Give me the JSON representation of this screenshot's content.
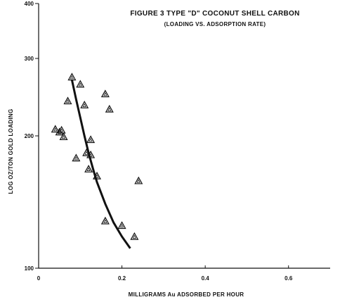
{
  "chart_data": {
    "type": "scatter",
    "title": "FIGURE 3 TYPE \"D\" COCONUT SHELL CARBON",
    "subtitle": "(LOADING VS. ADSORPTION RATE)",
    "xlabel": "MILLIGRAMS Au ADSORBED PER HOUR",
    "ylabel": "LOG OZ/TON GOLD LOADING",
    "xlim": [
      0.0,
      0.7
    ],
    "ylim": [
      100,
      400
    ],
    "y_scale": "log",
    "x_ticks": [
      "0",
      "0.2",
      "0.4",
      "0.6"
    ],
    "y_ticks": [
      "100",
      "200",
      "300",
      "400"
    ],
    "grid": false,
    "marker": "triangle",
    "series": [
      {
        "points": [
          {
            "x": 0.04,
            "y": 207
          },
          {
            "x": 0.05,
            "y": 204
          },
          {
            "x": 0.055,
            "y": 206
          },
          {
            "x": 0.06,
            "y": 199
          },
          {
            "x": 0.07,
            "y": 240
          },
          {
            "x": 0.08,
            "y": 272
          },
          {
            "x": 0.09,
            "y": 178
          },
          {
            "x": 0.1,
            "y": 262
          },
          {
            "x": 0.11,
            "y": 235
          },
          {
            "x": 0.115,
            "y": 183
          },
          {
            "x": 0.12,
            "y": 168
          },
          {
            "x": 0.125,
            "y": 181
          },
          {
            "x": 0.125,
            "y": 196
          },
          {
            "x": 0.14,
            "y": 162
          },
          {
            "x": 0.16,
            "y": 249
          },
          {
            "x": 0.16,
            "y": 128
          },
          {
            "x": 0.17,
            "y": 230
          },
          {
            "x": 0.2,
            "y": 125
          },
          {
            "x": 0.23,
            "y": 118
          },
          {
            "x": 0.24,
            "y": 158
          }
        ]
      }
    ],
    "fit_curve": [
      {
        "x": 0.08,
        "y": 268
      },
      {
        "x": 0.09,
        "y": 242
      },
      {
        "x": 0.1,
        "y": 220
      },
      {
        "x": 0.11,
        "y": 200
      },
      {
        "x": 0.12,
        "y": 183
      },
      {
        "x": 0.13,
        "y": 169
      },
      {
        "x": 0.14,
        "y": 157
      },
      {
        "x": 0.16,
        "y": 140
      },
      {
        "x": 0.18,
        "y": 127
      },
      {
        "x": 0.2,
        "y": 118
      },
      {
        "x": 0.22,
        "y": 111
      }
    ]
  }
}
